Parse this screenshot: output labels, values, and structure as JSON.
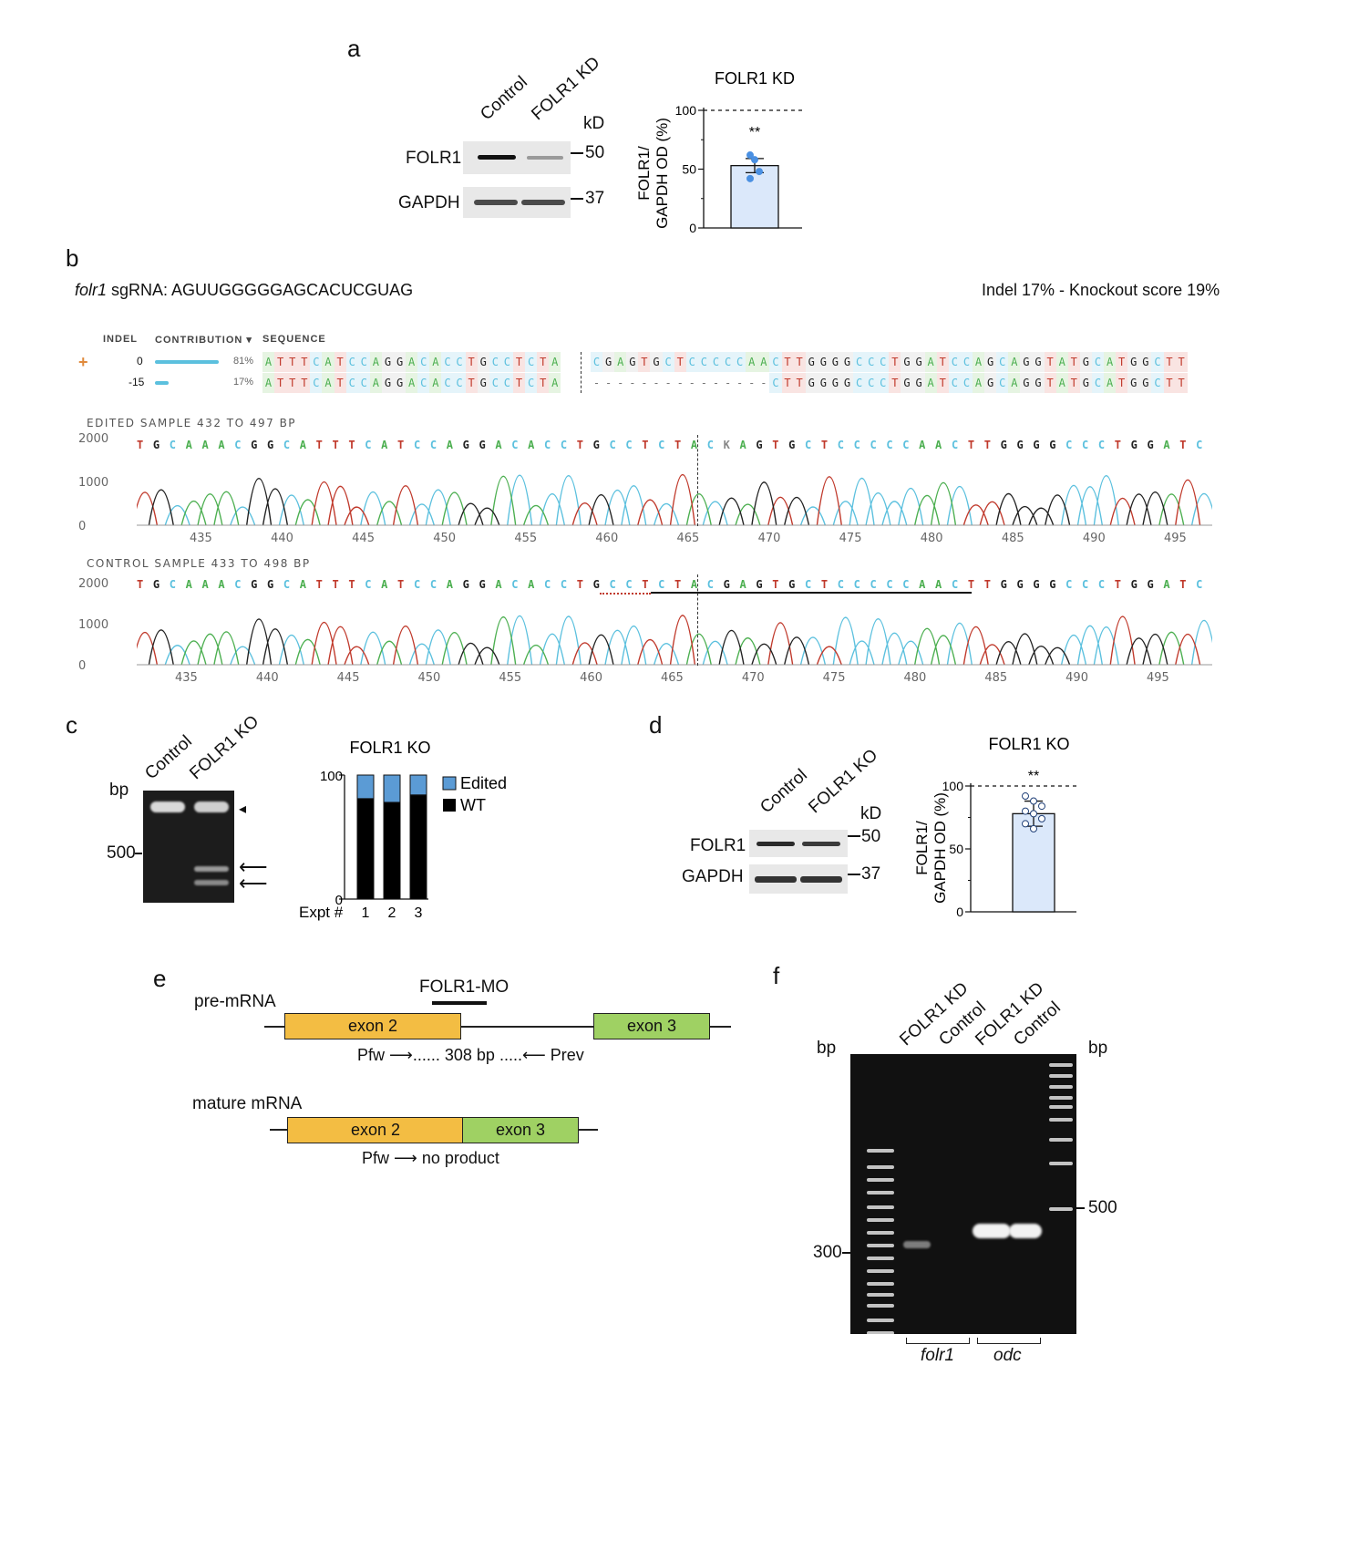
{
  "panels": {
    "a": "a",
    "b": "b",
    "c": "c",
    "d": "d",
    "e": "e",
    "f": "f"
  },
  "panel_a": {
    "lanes": [
      "Control",
      "FOLR1 KD"
    ],
    "kd": "kD",
    "row1": "FOLR1",
    "row2": "GAPDH",
    "marker1": "50",
    "marker2": "37",
    "chart_title": "FOLR1 KD",
    "ylabel_line1": "FOLR1/",
    "ylabel_line2": "GAPDH OD (%)",
    "sig": "**"
  },
  "panel_b": {
    "sgrna_gene": "folr1",
    "sgrna_text": "sgRNA: AGUUGGGGGAGCACUCGUAG",
    "indel_summary": "Indel 17% - Knockout score 19%",
    "col_indel": "INDEL",
    "col_contribution": "CONTRIBUTION",
    "col_sequence": "SEQUENCE",
    "plus": "+",
    "rows": [
      {
        "indel": "0",
        "pct": "81%",
        "left": "ATTTCATCCAGGACACCTGCCTCTA",
        "right": "CGAGTGCTCCCCCAACTTGGGGCCCTGGATCCAGCAGGTATGCATGGCTT"
      },
      {
        "indel": "-15",
        "pct": "17%",
        "left": "ATTTCATCCAGGACACCTGCCTCTA",
        "right": "---------------CTTGGGGCCCTGGATCCAGCAGGTATGCATGGCTT"
      }
    ],
    "edited_header": "EDITED SAMPLE 432 TO 497 BP",
    "control_header": "CONTROL SAMPLE 433 TO 498 BP",
    "edited_bases": "TGCAAACGGCATTTCATCCAGGACACCTGCCTCTACKAGTGCTCCCCCAACTTGGGGCCCTGGATC",
    "control_bases": "TGCAAACGGCATTTCATCCAGGACACCTGCCTCTACGAGTGCTCCCCCAACTTGGGGCCCTGGATC",
    "y_ticks": [
      "2000",
      "1000",
      "0"
    ],
    "x_ticks_edited": [
      "435",
      "440",
      "445",
      "450",
      "455",
      "460",
      "465",
      "470",
      "475",
      "480",
      "485",
      "490",
      "495"
    ],
    "x_ticks_control": [
      "435",
      "440",
      "445",
      "450",
      "455",
      "460",
      "465",
      "470",
      "475",
      "480",
      "485",
      "490",
      "495"
    ],
    "base_colors": {
      "A": "#4caf50",
      "C": "#5bc0de",
      "G": "#222222",
      "T": "#c0392b",
      "K": "#888888"
    }
  },
  "panel_c": {
    "lanes": [
      "Control",
      "FOLR1 KO"
    ],
    "bp": "bp",
    "marker": "500",
    "legend_edited": "Edited",
    "legend_wt": "WT",
    "xprefix": "Expt #"
  },
  "panel_d": {
    "lanes": [
      "Control",
      "FOLR1 KO"
    ],
    "kd": "kD",
    "row1": "FOLR1",
    "row2": "GAPDH",
    "marker1": "50",
    "marker2": "37",
    "chart_title": "FOLR1 KO",
    "ylabel_line1": "FOLR1/",
    "ylabel_line2": "GAPDH OD (%)",
    "sig": "**"
  },
  "panel_e": {
    "premrna": "pre-mRNA",
    "mo": "FOLR1-MO",
    "exon2": "exon 2",
    "exon3": "exon 3",
    "pfw": "Pfw",
    "product": "308 bp",
    "prev": "Prev",
    "mature": "mature mRNA",
    "no_product": "no product"
  },
  "panel_f": {
    "lanes": [
      "FOLR1 KD",
      "Control",
      "FOLR1 KD",
      "Control"
    ],
    "bp_left": "bp",
    "bp_right": "bp",
    "marker_left": "300",
    "marker_right": "500",
    "gene1": "folr1",
    "gene2": "odc"
  },
  "chart_data": [
    {
      "type": "bar",
      "title": "FOLR1 KD",
      "categories": [
        "FOLR1 KD"
      ],
      "values": [
        53
      ],
      "error": 6,
      "points": [
        62,
        58,
        48,
        42
      ],
      "ylim": [
        0,
        100
      ],
      "yticks": [
        0,
        50,
        100
      ],
      "reference_line": 100,
      "ylabel": "FOLR1/ GAPDH OD (%)",
      "color": "#dbe8fa"
    },
    {
      "type": "bar",
      "title": "FOLR1 KO",
      "stacked": true,
      "categories": [
        "1",
        "2",
        "3"
      ],
      "series": [
        {
          "name": "WT",
          "values": [
            81,
            78,
            84
          ],
          "color": "#000000"
        },
        {
          "name": "Edited",
          "values": [
            19,
            22,
            16
          ],
          "color": "#5b9bd5"
        }
      ],
      "ylim": [
        0,
        100
      ],
      "yticks": [
        0,
        100
      ],
      "xlabel": "Expt #"
    },
    {
      "type": "bar",
      "title": "FOLR1 KO",
      "categories": [
        "FOLR1 KO"
      ],
      "values": [
        78
      ],
      "error": 10,
      "points": [
        92,
        88,
        84,
        80,
        78,
        74,
        70,
        66
      ],
      "ylim": [
        0,
        100
      ],
      "yticks": [
        0,
        50,
        100
      ],
      "reference_line": 100,
      "ylabel": "FOLR1/ GAPDH OD (%)",
      "color": "#dbe8fa"
    }
  ]
}
